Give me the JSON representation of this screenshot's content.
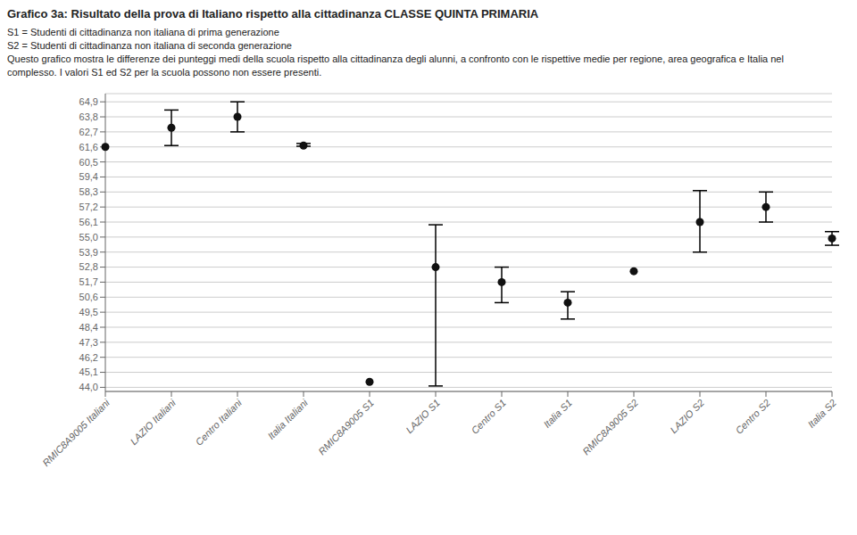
{
  "chart_data": {
    "type": "scatter",
    "title": "Grafico 3a: Risultato della prova di Italiano rispetto alla cittadinanza CLASSE QUINTA PRIMARIA",
    "subtitle": [
      "S1 = Studenti di cittadinanza non italiana di prima generazione",
      "S2 = Studenti di cittadinanza non italiana di seconda generazione",
      "Questo grafico mostra le differenze dei punteggi medi della scuola rispetto alla cittadinanza degli alunni, a confronto con le rispettive medie per regione, area geografica e Italia nel",
      "complesso. I valori S1 ed S2 per la scuola possono non essere presenti."
    ],
    "categories": [
      "RMIC8A9005 Italiani",
      "LAZIO Italiani",
      "Centro Italiani",
      "Italia Italiani",
      "RMIC8A9005 S1",
      "LAZIO S1",
      "Centro S1",
      "Italia S1",
      "RMIC8A9005 S2",
      "LAZIO S2",
      "Centro S2",
      "Italia S2"
    ],
    "values": [
      61.6,
      63.0,
      63.8,
      61.7,
      44.4,
      52.8,
      51.7,
      50.2,
      52.5,
      56.1,
      57.2,
      54.9
    ],
    "err_low": [
      0.0,
      1.3,
      1.1,
      0.05,
      0.0,
      8.7,
      1.5,
      1.2,
      0.0,
      2.2,
      1.1,
      0.5
    ],
    "err_high": [
      0.0,
      1.3,
      1.1,
      0.15,
      0.0,
      3.1,
      1.1,
      0.8,
      0.0,
      2.3,
      1.1,
      0.5
    ],
    "color": "#111111",
    "ylim": [
      43.7,
      65.5
    ],
    "yticks": [
      {
        "value": 44.0,
        "label": "44,0"
      },
      {
        "value": 45.1,
        "label": "45,1"
      },
      {
        "value": 46.2,
        "label": "46,2"
      },
      {
        "value": 47.3,
        "label": "47,3"
      },
      {
        "value": 48.4,
        "label": "48,4"
      },
      {
        "value": 49.5,
        "label": "49,5"
      },
      {
        "value": 50.6,
        "label": "50,6"
      },
      {
        "value": 51.7,
        "label": "51,7"
      },
      {
        "value": 52.8,
        "label": "52,8"
      },
      {
        "value": 53.9,
        "label": "53,9"
      },
      {
        "value": 55.0,
        "label": "55,0"
      },
      {
        "value": 56.1,
        "label": "56,1"
      },
      {
        "value": 57.2,
        "label": "57,2"
      },
      {
        "value": 58.3,
        "label": "58,3"
      },
      {
        "value": 59.4,
        "label": "59,4"
      },
      {
        "value": 60.5,
        "label": "60,5"
      },
      {
        "value": 61.6,
        "label": "61,6"
      },
      {
        "value": 62.7,
        "label": "62,7"
      },
      {
        "value": 63.8,
        "label": "63,8"
      },
      {
        "value": 64.9,
        "label": "64,9"
      }
    ],
    "grid": true
  }
}
